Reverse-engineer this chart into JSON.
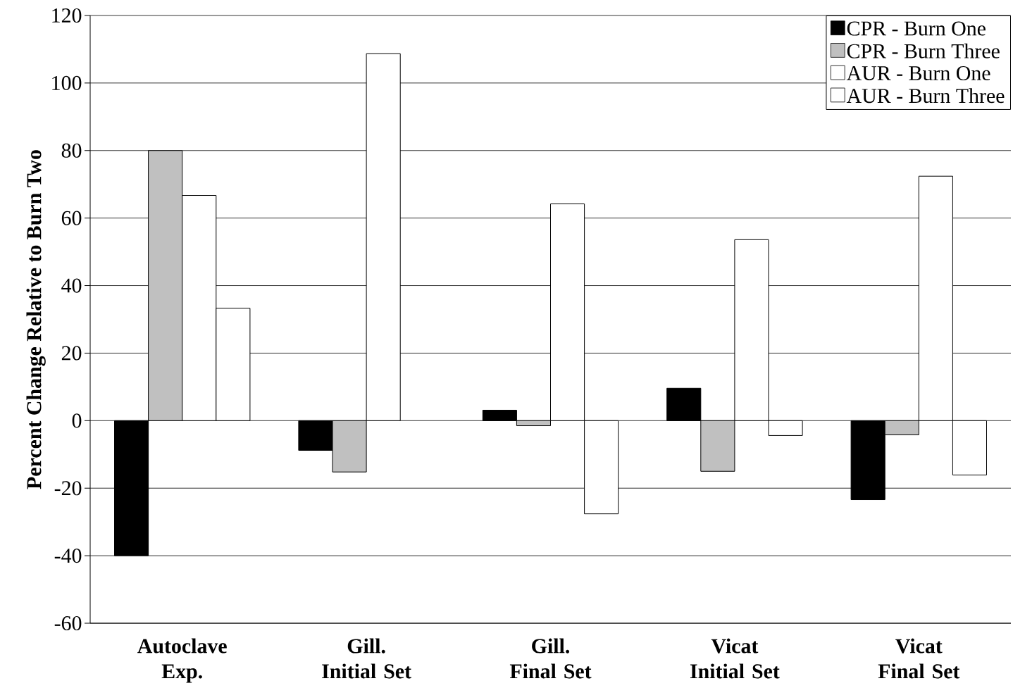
{
  "chart_data": {
    "type": "bar",
    "ylabel": "Percent Change Relative to Burn Two",
    "categories": [
      "Autoclave Exp.",
      "Gill. Initial Set",
      "Gill. Final Set",
      "Vicat Initial Set",
      "Vicat Final Set"
    ],
    "series": [
      {
        "name": "CPR - Burn One",
        "color": "#000000",
        "values": [
          -40,
          -8.8,
          3.1,
          9.6,
          -23.4
        ]
      },
      {
        "name": "CPR - Burn Three",
        "color": "#c0c0c0",
        "values": [
          80,
          -15.2,
          -1.5,
          -15,
          -4.2
        ]
      },
      {
        "name": "AUR - Burn One",
        "color": "#ffffff",
        "values": [
          66.7,
          108.7,
          64.2,
          53.6,
          72.4
        ]
      },
      {
        "name": "AUR - Burn Three",
        "color": "#ffffff",
        "values": [
          33.3,
          null,
          -27.6,
          -4.4,
          -16.1
        ]
      }
    ],
    "ylim": [
      -60,
      120
    ],
    "yticks": [
      -60,
      -40,
      -20,
      0,
      20,
      40,
      60,
      80,
      100,
      120
    ],
    "grid": "y",
    "legend": "top right"
  }
}
